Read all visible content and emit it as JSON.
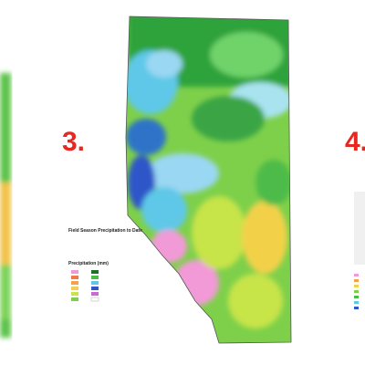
{
  "panels": [
    {
      "number": "3.",
      "map": {
        "legend_title": "Field Season Precipitation to Date",
        "legend_heading": "Precipitation (mm)"
      }
    },
    {
      "number": "4."
    }
  ]
}
